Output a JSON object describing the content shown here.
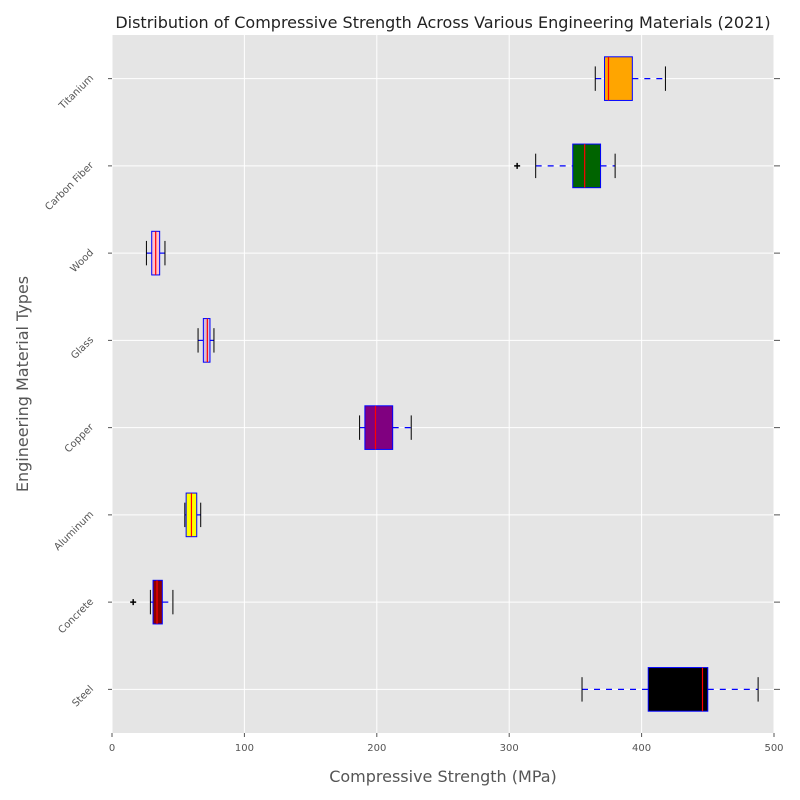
{
  "chart_data": {
    "type": "boxplot",
    "orientation": "horizontal",
    "title": "Distribution of Compressive Strength Across Various Engineering Materials (2021)",
    "xlabel": "Compressive Strength (MPa)",
    "ylabel": "Engineering Material Types",
    "xlim": [
      0,
      500
    ],
    "xticks": [
      0,
      100,
      200,
      300,
      400,
      500
    ],
    "grid": true,
    "background": "#e5e5e5",
    "whisker_style": "dashed",
    "whisker_color": "#0000ff",
    "median_color": "#ff0000",
    "box_edge_color": "#0000ff",
    "categories": [
      "Steel",
      "Concrete",
      "Aluminum",
      "Copper",
      "Glass",
      "Wood",
      "Carbon Fiber",
      "Titanium"
    ],
    "boxes": [
      {
        "category": "Steel",
        "whisker_low": 355,
        "q1": 405,
        "median": 446,
        "q3": 450,
        "whisker_high": 488,
        "outliers": [],
        "color": "#000000"
      },
      {
        "category": "Concrete",
        "whisker_low": 29,
        "q1": 31,
        "median": 34,
        "q3": 38,
        "whisker_high": 46,
        "outliers": [
          16
        ],
        "color": "#8b0000"
      },
      {
        "category": "Aluminum",
        "whisker_low": 55,
        "q1": 56,
        "median": 60,
        "q3": 64,
        "whisker_high": 67,
        "outliers": [],
        "color": "#ffff00"
      },
      {
        "category": "Copper",
        "whisker_low": 187,
        "q1": 191,
        "median": 199,
        "q3": 212,
        "whisker_high": 226,
        "outliers": [],
        "color": "#800080"
      },
      {
        "category": "Glass",
        "whisker_low": 65,
        "q1": 69,
        "median": 72,
        "q3": 74,
        "whisker_high": 77,
        "outliers": [],
        "color": "#d8bfd8"
      },
      {
        "category": "Wood",
        "whisker_low": 26,
        "q1": 30,
        "median": 33,
        "q3": 36,
        "whisker_high": 40,
        "outliers": [],
        "color": "#ffc0cb"
      },
      {
        "category": "Carbon Fiber",
        "whisker_low": 320,
        "q1": 348,
        "median": 357,
        "q3": 369,
        "whisker_high": 380,
        "outliers": [
          306
        ],
        "color": "#006400"
      },
      {
        "category": "Titanium",
        "whisker_low": 365,
        "q1": 372,
        "median": 375,
        "q3": 393,
        "whisker_high": 418,
        "outliers": [],
        "color": "#ffa500"
      }
    ]
  }
}
